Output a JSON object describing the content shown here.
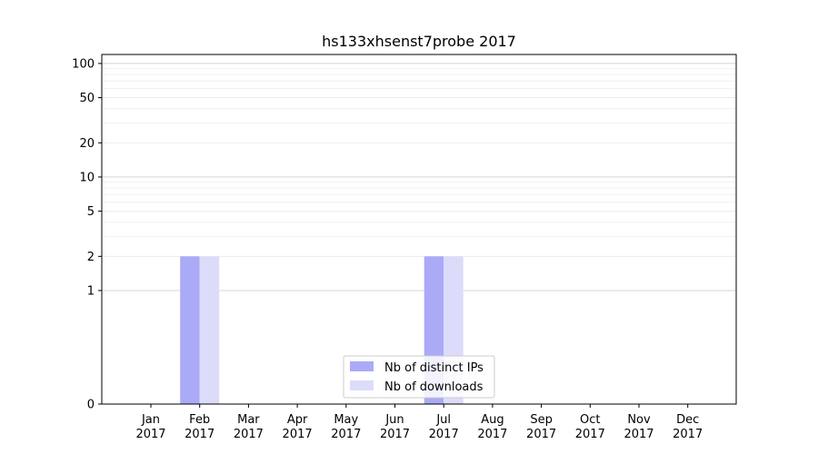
{
  "chart_data": {
    "type": "bar",
    "title": "hs133xhsenst7probe 2017",
    "xlabel": "",
    "ylabel": "",
    "y_scale": "symlog",
    "ylim": [
      0,
      120
    ],
    "y_ticks": [
      0,
      1,
      2,
      5,
      10,
      20,
      50,
      100
    ],
    "categories": [
      [
        "Jan",
        "2017"
      ],
      [
        "Feb",
        "2017"
      ],
      [
        "Mar",
        "2017"
      ],
      [
        "Apr",
        "2017"
      ],
      [
        "May",
        "2017"
      ],
      [
        "Jun",
        "2017"
      ],
      [
        "Jul",
        "2017"
      ],
      [
        "Aug",
        "2017"
      ],
      [
        "Sep",
        "2017"
      ],
      [
        "Oct",
        "2017"
      ],
      [
        "Nov",
        "2017"
      ],
      [
        "Dec",
        "2017"
      ]
    ],
    "series": [
      {
        "name": "Nb of distinct IPs",
        "color": "#aaaaf7",
        "values": [
          0,
          2,
          0,
          0,
          0,
          0,
          2,
          0,
          0,
          0,
          0,
          0
        ]
      },
      {
        "name": "Nb of downloads",
        "color": "#dcdcfa",
        "values": [
          0,
          2,
          0,
          0,
          0,
          0,
          2,
          0,
          0,
          0,
          0,
          0
        ]
      }
    ],
    "grid": true,
    "legend_position": "lower-center"
  }
}
